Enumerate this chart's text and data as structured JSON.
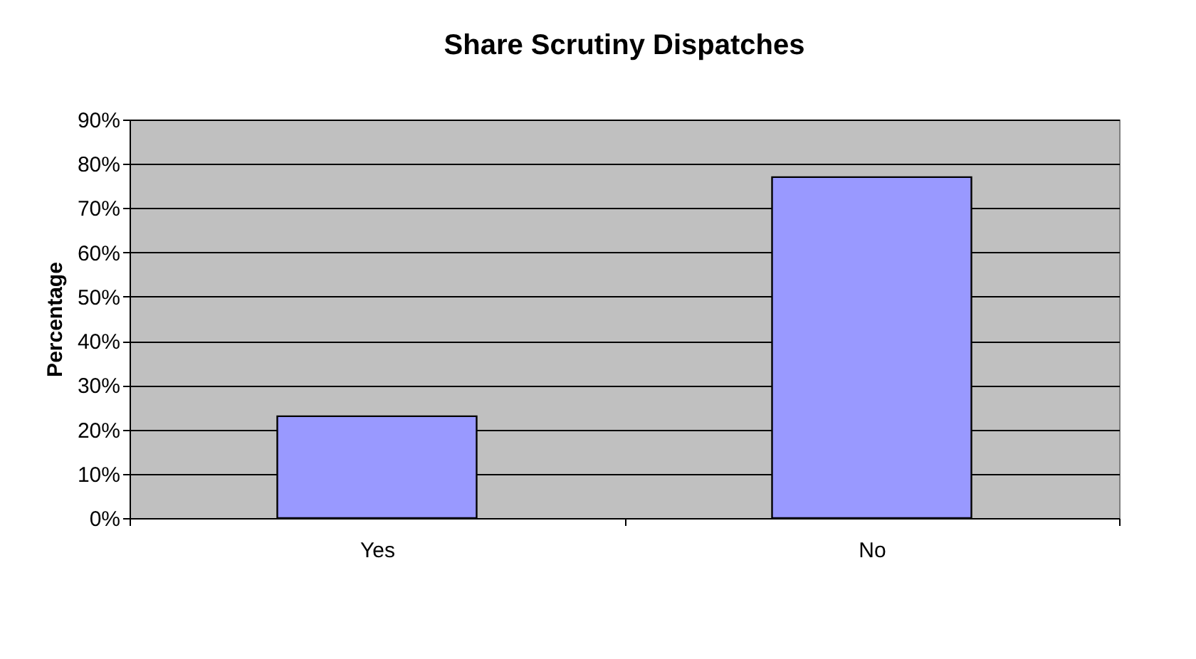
{
  "chart_data": {
    "type": "bar",
    "title": "Share Scrutiny Dispatches",
    "ylabel": "Percentage",
    "categories": [
      "Yes",
      "No"
    ],
    "values": [
      23,
      77
    ],
    "color": "#9999ff",
    "ylim": [
      0,
      90
    ],
    "yticks": [
      {
        "value": 0,
        "label": "0%"
      },
      {
        "value": 10,
        "label": "10%"
      },
      {
        "value": 20,
        "label": "20%"
      },
      {
        "value": 30,
        "label": "30%"
      },
      {
        "value": 40,
        "label": "40%"
      },
      {
        "value": 50,
        "label": "50%"
      },
      {
        "value": 60,
        "label": "60%"
      },
      {
        "value": 70,
        "label": "70%"
      },
      {
        "value": 80,
        "label": "80%"
      },
      {
        "value": 90,
        "label": "90%"
      }
    ],
    "grid": "y"
  }
}
